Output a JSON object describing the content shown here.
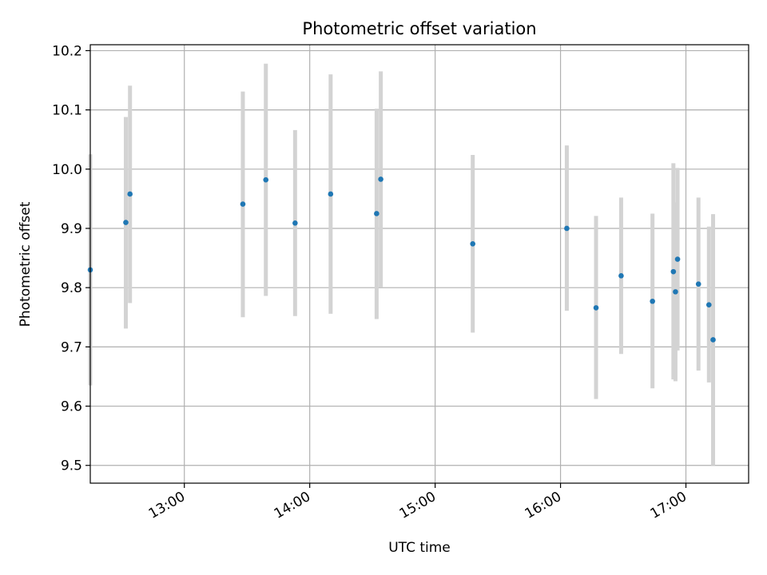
{
  "colors": {
    "point": "#1f77b4",
    "errorbar": "#d3d3d3",
    "grid": "#b0b0b0",
    "axis": "#000000",
    "background": "#ffffff"
  },
  "chart_data": {
    "type": "scatter",
    "title": "Photometric offset variation",
    "xlabel": "UTC time",
    "ylabel": "Photometric offset",
    "x_unit": "hours (UTC)",
    "xlim": [
      "12:15",
      "17:30"
    ],
    "ylim": [
      9.47,
      10.21
    ],
    "grid": true,
    "xticks": [
      {
        "value": 13,
        "label": "13:00"
      },
      {
        "value": 14,
        "label": "14:00"
      },
      {
        "value": 15,
        "label": "15:00"
      },
      {
        "value": 16,
        "label": "16:00"
      },
      {
        "value": 17,
        "label": "17:00"
      }
    ],
    "yticks": [
      {
        "value": 9.5,
        "label": "9.5"
      },
      {
        "value": 9.6,
        "label": "9.6"
      },
      {
        "value": 9.7,
        "label": "9.7"
      },
      {
        "value": 9.8,
        "label": "9.8"
      },
      {
        "value": 9.9,
        "label": "9.9"
      },
      {
        "value": 10.0,
        "label": "10.0"
      },
      {
        "value": 10.1,
        "label": "10.1"
      },
      {
        "value": 10.2,
        "label": "10.2"
      }
    ],
    "points": [
      {
        "time": "12:15",
        "y": 9.83,
        "ylow": 9.635,
        "yhigh": 10.025
      },
      {
        "time": "12:32",
        "y": 9.91,
        "ylow": 9.731,
        "yhigh": 10.088
      },
      {
        "time": "12:34",
        "y": 9.958,
        "ylow": 9.774,
        "yhigh": 10.141
      },
      {
        "time": "13:28",
        "y": 9.941,
        "ylow": 9.75,
        "yhigh": 10.131
      },
      {
        "time": "13:39",
        "y": 9.982,
        "ylow": 9.786,
        "yhigh": 10.178
      },
      {
        "time": "13:53",
        "y": 9.909,
        "ylow": 9.752,
        "yhigh": 10.066
      },
      {
        "time": "14:10",
        "y": 9.958,
        "ylow": 9.756,
        "yhigh": 10.16
      },
      {
        "time": "14:32",
        "y": 9.925,
        "ylow": 9.747,
        "yhigh": 10.102
      },
      {
        "time": "14:34",
        "y": 9.983,
        "ylow": 9.801,
        "yhigh": 10.165
      },
      {
        "time": "15:18",
        "y": 9.874,
        "ylow": 9.724,
        "yhigh": 10.024
      },
      {
        "time": "16:03",
        "y": 9.9,
        "ylow": 9.761,
        "yhigh": 10.04
      },
      {
        "time": "16:17",
        "y": 9.766,
        "ylow": 9.612,
        "yhigh": 9.921
      },
      {
        "time": "16:29",
        "y": 9.82,
        "ylow": 9.688,
        "yhigh": 9.952
      },
      {
        "time": "16:44",
        "y": 9.777,
        "ylow": 9.63,
        "yhigh": 9.925
      },
      {
        "time": "16:54",
        "y": 9.827,
        "ylow": 9.645,
        "yhigh": 10.01
      },
      {
        "time": "16:55",
        "y": 9.793,
        "ylow": 9.642,
        "yhigh": 9.944
      },
      {
        "time": "16:56",
        "y": 9.848,
        "ylow": 9.694,
        "yhigh": 10.002
      },
      {
        "time": "17:06",
        "y": 9.806,
        "ylow": 9.66,
        "yhigh": 9.952
      },
      {
        "time": "17:11",
        "y": 9.771,
        "ylow": 9.64,
        "yhigh": 9.903
      },
      {
        "time": "17:13",
        "y": 9.712,
        "ylow": 9.5,
        "yhigh": 9.924
      }
    ]
  }
}
